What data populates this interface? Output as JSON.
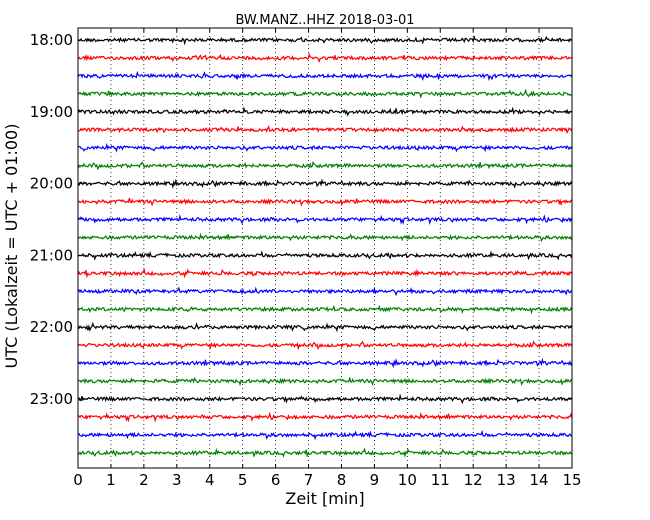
{
  "chart_data": {
    "type": "line",
    "title": "BW.MANZ..HHZ 2018-03-01",
    "xlabel": "Zeit  [min]",
    "ylabel": "UTC (Lokalzeit = UTC + 01:00)",
    "xlim": [
      0,
      15
    ],
    "x_ticks": [
      "0",
      "1",
      "2",
      "3",
      "4",
      "5",
      "6",
      "7",
      "8",
      "9",
      "10",
      "11",
      "12",
      "13",
      "14",
      "15"
    ],
    "y_tick_labels": [
      "18:00",
      "19:00",
      "20:00",
      "21:00",
      "22:00",
      "23:00"
    ],
    "grid": "vertical dotted lines at each minute",
    "trace_interval_minutes": 15,
    "series": [
      {
        "start": "18:00",
        "color": "#000000"
      },
      {
        "start": "18:15",
        "color": "#ff0000"
      },
      {
        "start": "18:30",
        "color": "#0000ff"
      },
      {
        "start": "18:45",
        "color": "#008000"
      },
      {
        "start": "19:00",
        "color": "#000000"
      },
      {
        "start": "19:15",
        "color": "#ff0000"
      },
      {
        "start": "19:30",
        "color": "#0000ff"
      },
      {
        "start": "19:45",
        "color": "#008000"
      },
      {
        "start": "20:00",
        "color": "#000000"
      },
      {
        "start": "20:15",
        "color": "#ff0000"
      },
      {
        "start": "20:30",
        "color": "#0000ff"
      },
      {
        "start": "20:45",
        "color": "#008000"
      },
      {
        "start": "21:00",
        "color": "#000000"
      },
      {
        "start": "21:15",
        "color": "#ff0000"
      },
      {
        "start": "21:30",
        "color": "#0000ff"
      },
      {
        "start": "21:45",
        "color": "#008000"
      },
      {
        "start": "22:00",
        "color": "#000000"
      },
      {
        "start": "22:15",
        "color": "#ff0000"
      },
      {
        "start": "22:30",
        "color": "#0000ff"
      },
      {
        "start": "22:45",
        "color": "#008000"
      },
      {
        "start": "23:00",
        "color": "#000000"
      },
      {
        "start": "23:15",
        "color": "#ff0000"
      },
      {
        "start": "23:30",
        "color": "#0000ff"
      },
      {
        "start": "23:45",
        "color": "#008000"
      }
    ]
  }
}
